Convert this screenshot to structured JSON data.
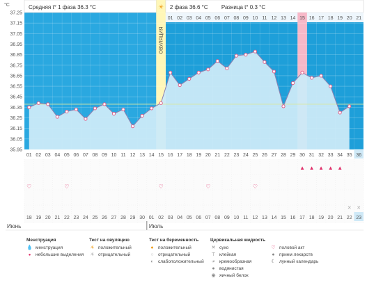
{
  "header": {
    "phase1": "Средняя t° 1 фаза 36.3 °C",
    "phase2": "2 фаза 36.6 °C",
    "diff": "Разница t° 0.3 °C",
    "sun_icon": "sun-icon"
  },
  "units_label": "°C",
  "ovulation_label": "ОВУЛЯЦИЯ",
  "colors": {
    "phase1_bg": "#2aa8e0",
    "phase2_bg": "#1e9fd9",
    "area_fill": "#cbeaf8",
    "line": "#8c7fb0",
    "point": "#e0608a",
    "ovulation": "#fff7b8",
    "highlight": "#f7b8c8",
    "coverline": "#d8e8a0"
  },
  "chart_data": {
    "type": "line",
    "ylabel": "°C",
    "ylim": [
      35.95,
      37.25
    ],
    "y_ticks": [
      "37.25",
      "37.15",
      "37.05",
      "36.95",
      "36.85",
      "36.75",
      "36.65",
      "36.55",
      "36.45",
      "36.35",
      "36.25",
      "36.15",
      "36.05",
      "35.95"
    ],
    "cycle_days": [
      "01",
      "02",
      "03",
      "04",
      "05",
      "06",
      "07",
      "08",
      "09",
      "10",
      "11",
      "12",
      "13",
      "14",
      "15",
      "16",
      "17",
      "18",
      "19",
      "20",
      "21",
      "22",
      "23",
      "24",
      "25",
      "26",
      "27",
      "28",
      "29",
      "30",
      "31",
      "32",
      "33",
      "34",
      "35",
      "36"
    ],
    "top_phase2_labels": [
      "01",
      "02",
      "03",
      "04",
      "05",
      "06",
      "07",
      "08",
      "09",
      "10",
      "11",
      "12",
      "13",
      "14",
      "15",
      "16",
      "17",
      "18",
      "19",
      "20",
      "21"
    ],
    "temperatures": [
      36.35,
      36.39,
      36.38,
      36.26,
      36.31,
      36.33,
      36.24,
      36.34,
      36.38,
      36.29,
      36.33,
      36.17,
      36.27,
      36.34,
      36.39,
      36.68,
      36.56,
      36.62,
      36.68,
      36.71,
      36.79,
      36.72,
      36.84,
      36.85,
      36.88,
      36.78,
      36.69,
      36.36,
      36.58,
      36.68,
      36.63,
      36.65,
      36.55,
      36.3,
      36.36
    ],
    "ovulation_day": 15,
    "highlight_day": 30,
    "cover_line": 36.38,
    "intercourse_days": [
      1,
      5,
      15,
      20,
      25
    ],
    "menstruation_days": [
      30,
      31,
      32,
      33,
      34
    ],
    "cross_days": [
      35,
      36
    ],
    "calendar_dates": [
      "18",
      "19",
      "20",
      "21",
      "22",
      "23",
      "24",
      "25",
      "26",
      "27",
      "28",
      "29",
      "30",
      "01",
      "02",
      "03",
      "04",
      "05",
      "06",
      "07",
      "08",
      "09",
      "10",
      "11",
      "12",
      "13",
      "14",
      "15",
      "16",
      "17",
      "18",
      "19",
      "20",
      "21",
      "22",
      "23"
    ],
    "calendar_red": [
      0,
      1,
      7,
      8,
      14,
      15,
      21,
      22,
      28,
      29
    ],
    "month_left": "Июнь",
    "month_right": "Июль",
    "today_index": 35
  },
  "legend": {
    "menstruation": {
      "title": "Менструация",
      "items": [
        {
          "icon": "drop-icon",
          "label": "менструация"
        },
        {
          "icon": "small-drop-icon",
          "label": "небольшие выделения"
        }
      ]
    },
    "ovulation_test": {
      "title": "Тест на овуляцию",
      "items": [
        {
          "icon": "sun-positive-icon",
          "label": "положительный"
        },
        {
          "icon": "sun-negative-icon",
          "label": "отрицательный"
        }
      ]
    },
    "pregnancy_test": {
      "title": "Тест на беременность",
      "items": [
        {
          "icon": "circle-positive-icon",
          "label": "положительный"
        },
        {
          "icon": "circle-negative-icon",
          "label": "отрицательный"
        },
        {
          "icon": "circle-weak-icon",
          "label": "слабоположительный"
        }
      ]
    },
    "cervical": {
      "title": "Цервикальная жидкость",
      "items": [
        {
          "icon": "cross-icon",
          "label": "сухо"
        },
        {
          "icon": "sticky-icon",
          "label": "клейкая"
        },
        {
          "icon": "creamy-icon",
          "label": "кремообразная"
        },
        {
          "icon": "watery-icon",
          "label": "водянистая"
        },
        {
          "icon": "eggwhite-icon",
          "label": "яичный белок"
        }
      ]
    },
    "other": {
      "items": [
        {
          "icon": "heart-icon",
          "label": "половой акт"
        },
        {
          "icon": "pill-icon",
          "label": "прием лекарств"
        },
        {
          "icon": "moon-icon",
          "label": "лунный календарь"
        }
      ]
    }
  }
}
